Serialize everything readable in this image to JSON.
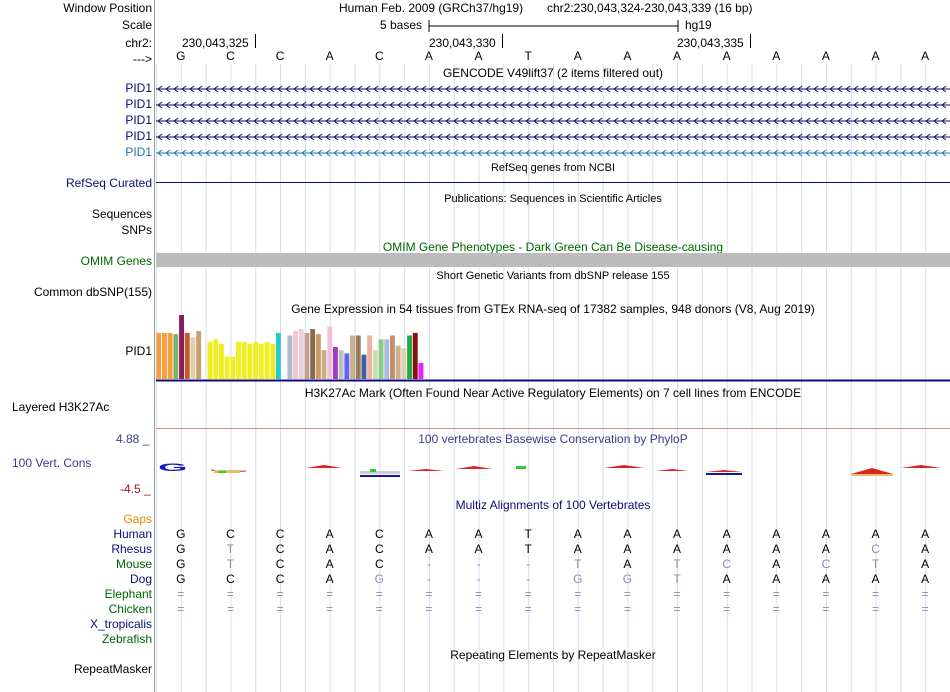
{
  "header": {
    "window_position_label": "Window Position",
    "scale_label": "Scale",
    "chrom_label": "chr2:",
    "arrow_label": "--->",
    "assembly": "Human Feb. 2009 (GRCh37/hg19)",
    "position": "chr2:230,043,324-230,043,339 (16 bp)",
    "scale_text": "5 bases",
    "scale_db": "hg19",
    "ticks": [
      "230,043,325",
      "230,043,330",
      "230,043,335"
    ],
    "bases": [
      "G",
      "C",
      "C",
      "A",
      "C",
      "A",
      "A",
      "T",
      "A",
      "A",
      "A",
      "A",
      "A",
      "A",
      "A",
      "A"
    ]
  },
  "tracks": {
    "gencode": {
      "title": "GENCODE V49lift37 (2 items filtered out)",
      "items": [
        {
          "label": "PID1",
          "color": "#0c0c78"
        },
        {
          "label": "PID1",
          "color": "#0c0c78"
        },
        {
          "label": "PID1",
          "color": "#0c0c78"
        },
        {
          "label": "PID1",
          "color": "#0c0c78"
        },
        {
          "label": "PID1",
          "color": "#1f77b4"
        }
      ]
    },
    "refseq": {
      "title": "RefSeq genes from NCBI",
      "label": "RefSeq Curated",
      "color": "#0c0c78"
    },
    "publications": {
      "title": "Publications: Sequences in Scientific Articles",
      "label1": "Sequences",
      "label2": "SNPs"
    },
    "omim": {
      "title": "OMIM Gene Phenotypes - Dark Green Can Be Disease-causing",
      "label": "OMIM Genes",
      "color": "#006600"
    },
    "dbsnp": {
      "title": "Short Genetic Variants from dbSNP release 155",
      "label": "Common dbSNP(155)"
    },
    "gtex": {
      "title": "Gene Expression in 54 tissues from GTEx RNA-seq of 17382 samples, 948 donors (V8, Aug 2019)",
      "label": "PID1",
      "bars": [
        {
          "v": 0.72,
          "c": "#f5a040"
        },
        {
          "v": 0.72,
          "c": "#f5a040"
        },
        {
          "v": 0.72,
          "c": "#f5a040"
        },
        {
          "v": 0.7,
          "c": "#7ab06a"
        },
        {
          "v": 1.0,
          "c": "#8b1a5a"
        },
        {
          "v": 0.72,
          "c": "#c65a2a"
        },
        {
          "v": 0.65,
          "c": "#e0d0b0"
        },
        {
          "v": 0.75,
          "c": "#c8a070"
        },
        {
          "v": 0.0,
          "c": "#ffffff"
        },
        {
          "v": 0.58,
          "c": "#eeee22"
        },
        {
          "v": 0.62,
          "c": "#eeee22"
        },
        {
          "v": 0.55,
          "c": "#eeee22"
        },
        {
          "v": 0.35,
          "c": "#eeee22"
        },
        {
          "v": 0.35,
          "c": "#eeee22"
        },
        {
          "v": 0.58,
          "c": "#eeee22"
        },
        {
          "v": 0.58,
          "c": "#eeee22"
        },
        {
          "v": 0.55,
          "c": "#eeee22"
        },
        {
          "v": 0.58,
          "c": "#eeee22"
        },
        {
          "v": 0.55,
          "c": "#eeee22"
        },
        {
          "v": 0.58,
          "c": "#eeee22"
        },
        {
          "v": 0.55,
          "c": "#eeee22"
        },
        {
          "v": 0.72,
          "c": "#22cccc"
        },
        {
          "v": 0.0,
          "c": "#ffffff"
        },
        {
          "v": 0.68,
          "c": "#aabbcc"
        },
        {
          "v": 0.75,
          "c": "#f0c8c8"
        },
        {
          "v": 0.78,
          "c": "#e8d0e0"
        },
        {
          "v": 0.72,
          "c": "#c0a090"
        },
        {
          "v": 0.78,
          "c": "#8b6a4a"
        },
        {
          "v": 0.7,
          "c": "#cc9966"
        },
        {
          "v": 0.45,
          "c": "#c8b088"
        },
        {
          "v": 0.82,
          "c": "#f0c0d8"
        },
        {
          "v": 0.5,
          "c": "#a040c0"
        },
        {
          "v": 0.45,
          "c": "#c0c0c0"
        },
        {
          "v": 0.4,
          "c": "#6060ff"
        },
        {
          "v": 0.68,
          "c": "#c8b088"
        },
        {
          "v": 0.68,
          "c": "#9a7a5a"
        },
        {
          "v": 0.38,
          "c": "#4060a0"
        },
        {
          "v": 0.68,
          "c": "#f0b0a0"
        },
        {
          "v": 0.45,
          "c": "#c8e0b0"
        },
        {
          "v": 0.62,
          "c": "#88cc88"
        },
        {
          "v": 0.62,
          "c": "#aabbdd"
        },
        {
          "v": 0.68,
          "c": "#c09070"
        },
        {
          "v": 0.52,
          "c": "#c8b088"
        },
        {
          "v": 0.48,
          "c": "#e0d0b0"
        },
        {
          "v": 0.68,
          "c": "#22aa44"
        },
        {
          "v": 0.72,
          "c": "#8b1010"
        },
        {
          "v": 0.25,
          "c": "#ee22ee"
        }
      ]
    },
    "h3k27ac": {
      "title": "H3K27Ac Mark (Often Found Near Active Regulatory Elements) on 7 cell lines from ENCODE",
      "label": "Layered H3K27Ac"
    },
    "phylop": {
      "title": "100 vertebrates Basewise Conservation by PhyloP",
      "label": "100 Vert. Cons",
      "max": "4.88 _",
      "min": "-4.5 _"
    },
    "multiz": {
      "title": "Multiz Alignments of 100 Vertebrates",
      "gaps_label": "Gaps",
      "species": [
        {
          "name": "Human",
          "color": "#0c0c78",
          "bases": [
            "G",
            "C",
            "C",
            "A",
            "C",
            "A",
            "A",
            "T",
            "A",
            "A",
            "A",
            "A",
            "A",
            "A",
            "A",
            "A"
          ],
          "faint": []
        },
        {
          "name": "Rhesus",
          "color": "#0c0c78",
          "bases": [
            "G",
            "T",
            "C",
            "A",
            "C",
            "A",
            "A",
            "T",
            "A",
            "A",
            "A",
            "A",
            "A",
            "A",
            "C",
            "A"
          ],
          "faint": [
            1,
            14
          ]
        },
        {
          "name": "Mouse",
          "color": "#006600",
          "bases": [
            "G",
            "T",
            "C",
            "A",
            "C",
            "-",
            "-",
            "-",
            "T",
            "A",
            "T",
            "C",
            "A",
            "C",
            "T",
            "A"
          ],
          "faint": [
            1,
            5,
            6,
            7,
            8,
            10,
            11,
            13,
            14
          ]
        },
        {
          "name": "Dog",
          "color": "#0c0c78",
          "bases": [
            "G",
            "C",
            "C",
            "A",
            "G",
            "-",
            "-",
            "-",
            "G",
            "G",
            "T",
            "A",
            "A",
            "A",
            "A",
            "A"
          ],
          "faint": [
            4,
            5,
            6,
            7,
            8,
            9,
            10
          ]
        },
        {
          "name": "Elephant",
          "color": "#006600",
          "bases": [
            "=",
            "=",
            "=",
            "=",
            "=",
            "=",
            "=",
            "=",
            "=",
            "=",
            "=",
            "=",
            "=",
            "=",
            "=",
            "="
          ],
          "faint": []
        },
        {
          "name": "Chicken",
          "color": "#006600",
          "bases": [
            "=",
            "=",
            "=",
            "=",
            "=",
            "=",
            "=",
            "=",
            "=",
            "=",
            "=",
            "=",
            "=",
            "=",
            "=",
            "="
          ],
          "faint": []
        },
        {
          "name": "X_tropicalis",
          "color": "#0c0c78",
          "bases": [],
          "faint": []
        },
        {
          "name": "Zebrafish",
          "color": "#006600",
          "bases": [],
          "faint": []
        }
      ]
    },
    "repeatmasker": {
      "title": "Repeating Elements by RepeatMasker",
      "label": "RepeatMasker"
    }
  }
}
